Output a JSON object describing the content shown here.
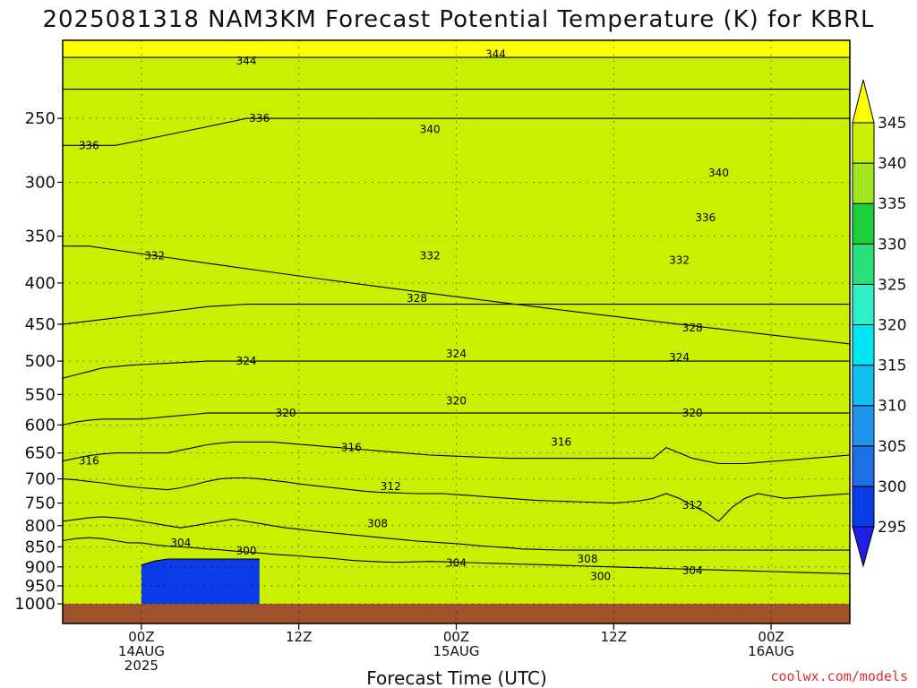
{
  "chart_data": {
    "type": "heatmap",
    "title": "2025081318 NAM3KM Forecast Potential Temperature (K) for KBRL",
    "xlabel": "Forecast Time (UTC)",
    "ylabel": "",
    "x_ticks": [
      {
        "hour": 6,
        "lines": [
          "00Z",
          "14AUG",
          "2025"
        ]
      },
      {
        "hour": 18,
        "lines": [
          "12Z"
        ]
      },
      {
        "hour": 30,
        "lines": [
          "00Z",
          "15AUG"
        ]
      },
      {
        "hour": 42,
        "lines": [
          "12Z"
        ]
      },
      {
        "hour": 54,
        "lines": [
          "00Z",
          "16AUG"
        ]
      }
    ],
    "xlim": [
      0,
      60
    ],
    "y_ticks": [
      250,
      300,
      350,
      400,
      450,
      500,
      550,
      600,
      650,
      700,
      750,
      800,
      850,
      900,
      950,
      1000
    ],
    "ylim_hpa": [
      1000,
      200
    ],
    "y_scale": "log-pressure",
    "grid": true,
    "colorbar": {
      "levels": [
        295,
        300,
        305,
        310,
        315,
        320,
        325,
        330,
        335,
        340,
        345
      ],
      "colors": [
        "#1e1ee6",
        "#0a3ce8",
        "#1e6ee6",
        "#1e96eb",
        "#10beef",
        "#00e6f0",
        "#2ef0c8",
        "#28e07a",
        "#1ecf3c",
        "#a2e61e",
        "#c8f000",
        "#ffff00"
      ]
    },
    "contour_interval": 4,
    "series": [
      {
        "theta": 300,
        "values": [
          null,
          null,
          null,
          null,
          null,
          null,
          895,
          885,
          880,
          880,
          880,
          880,
          880,
          880,
          880,
          880,
          null,
          null,
          null,
          null,
          null,
          null,
          null,
          null,
          null,
          null,
          null,
          null,
          null,
          null,
          null,
          null,
          null,
          null,
          null,
          null,
          null,
          null,
          null,
          null,
          null,
          null,
          null,
          null,
          null,
          null,
          null,
          null,
          null,
          null,
          null,
          null,
          null,
          null,
          null,
          null,
          null,
          null,
          null,
          null,
          null
        ]
      },
      {
        "theta": 304,
        "values": [
          835,
          830,
          828,
          830,
          835,
          840,
          840,
          845,
          848,
          850,
          852,
          855,
          857,
          860,
          862,
          865,
          868,
          870,
          872,
          875,
          877,
          880,
          883,
          885,
          887,
          888,
          888,
          887,
          886,
          887,
          888,
          889,
          890,
          891,
          892,
          893,
          894,
          895,
          896,
          897,
          898,
          899,
          900,
          901,
          902,
          903,
          904,
          905,
          906,
          907,
          908,
          909,
          910,
          911,
          912,
          913,
          914,
          915,
          916,
          917,
          918
        ]
      },
      {
        "theta": 308,
        "values": [
          790,
          786,
          782,
          780,
          782,
          785,
          790,
          795,
          800,
          805,
          800,
          795,
          790,
          785,
          790,
          795,
          800,
          805,
          808,
          812,
          815,
          818,
          821,
          824,
          827,
          830,
          833,
          836,
          838,
          840,
          842,
          845,
          848,
          850,
          852,
          855,
          856,
          857,
          858,
          858,
          858,
          858,
          858,
          858,
          858,
          858,
          858,
          858,
          858,
          858,
          858,
          858,
          858,
          858,
          858,
          858,
          858,
          858,
          858,
          858,
          858
        ]
      },
      {
        "theta": 312,
        "values": [
          700,
          702,
          705,
          708,
          712,
          715,
          718,
          720,
          722,
          718,
          712,
          705,
          700,
          698,
          698,
          700,
          703,
          706,
          710,
          713,
          716,
          719,
          722,
          725,
          727,
          728,
          729,
          730,
          730,
          730,
          732,
          734,
          736,
          738,
          740,
          742,
          744,
          745,
          746,
          747,
          748,
          749,
          750,
          748,
          745,
          740,
          730,
          740,
          755,
          770,
          790,
          760,
          740,
          730,
          735,
          740,
          738,
          736,
          734,
          732,
          730
        ]
      },
      {
        "theta": 316,
        "values": [
          665,
          660,
          655,
          652,
          650,
          650,
          650,
          650,
          650,
          645,
          640,
          635,
          632,
          630,
          630,
          630,
          630,
          632,
          634,
          636,
          638,
          640,
          642,
          644,
          646,
          648,
          650,
          652,
          654,
          655,
          656,
          657,
          658,
          659,
          660,
          660,
          660,
          660,
          660,
          660,
          660,
          660,
          660,
          660,
          660,
          660,
          640,
          650,
          660,
          665,
          670,
          670,
          670,
          668,
          666,
          664,
          662,
          660,
          658,
          656,
          654
        ]
      },
      {
        "theta": 320,
        "values": [
          600,
          595,
          592,
          590,
          590,
          590,
          590,
          588,
          586,
          584,
          582,
          580,
          580,
          580,
          580,
          580,
          580,
          580,
          580,
          580,
          580,
          580,
          580,
          580,
          580,
          580,
          580,
          580,
          580,
          580,
          580,
          580,
          580,
          580,
          580,
          580,
          580,
          580,
          580,
          580,
          580,
          580,
          580,
          580,
          580,
          580,
          580,
          580,
          580,
          580,
          580,
          580,
          580,
          580,
          580,
          580,
          580,
          580,
          580,
          580,
          580
        ]
      },
      {
        "theta": 324,
        "values": [
          525,
          520,
          515,
          510,
          508,
          506,
          505,
          504,
          503,
          502,
          501,
          500,
          500,
          500,
          500,
          500,
          500,
          500,
          500,
          500,
          500,
          500,
          500,
          500,
          500,
          500,
          500,
          500,
          500,
          500,
          500,
          500,
          500,
          500,
          500,
          500,
          500,
          500,
          500,
          500,
          500,
          500,
          500,
          500,
          500,
          500,
          500,
          500,
          500,
          500,
          500,
          500,
          500,
          500,
          500,
          500,
          500,
          500,
          500,
          500,
          500
        ]
      },
      {
        "theta": 328,
        "values": [
          450,
          448,
          446,
          444,
          442,
          440,
          438,
          436,
          434,
          432,
          430,
          428,
          427,
          426,
          425,
          425,
          425,
          425,
          425,
          425,
          425,
          425,
          425,
          425,
          425,
          425,
          425,
          425,
          425,
          425,
          425,
          425,
          425,
          425,
          425,
          425,
          425,
          425,
          425,
          425,
          425,
          425,
          425,
          425,
          425,
          425,
          425,
          425,
          425,
          425,
          425,
          425,
          425,
          425,
          425,
          425,
          425,
          425,
          425,
          425,
          425
        ]
      },
      {
        "theta": 332,
        "values": [
          360,
          360,
          360,
          362,
          364,
          366,
          368,
          370,
          372,
          374,
          376,
          378,
          380,
          382,
          384,
          386,
          388,
          390,
          392,
          394,
          396,
          398,
          400,
          402,
          404,
          406,
          408,
          410,
          412,
          414,
          416,
          418,
          420,
          422,
          424,
          426,
          428,
          430,
          432,
          434,
          436,
          438,
          440,
          442,
          444,
          446,
          448,
          450,
          452,
          454,
          456,
          458,
          460,
          462,
          464,
          466,
          468,
          470,
          472,
          474,
          476
        ]
      },
      {
        "theta": 336,
        "values": [
          270,
          270,
          270,
          270,
          270,
          268,
          266,
          264,
          262,
          260,
          258,
          256,
          254,
          252,
          250,
          250,
          250,
          250,
          250,
          250,
          250,
          250,
          250,
          250,
          250,
          250,
          250,
          250,
          250,
          250,
          250,
          250,
          250,
          250,
          250,
          250,
          250,
          250,
          250,
          250,
          250,
          250,
          250,
          250,
          250,
          250,
          250,
          250,
          250,
          250,
          250,
          250,
          250,
          250,
          250,
          250,
          250,
          250,
          250,
          250,
          250
        ]
      },
      {
        "theta": 340,
        "values": [
          230,
          230,
          230,
          230,
          230,
          230,
          230,
          230,
          230,
          230,
          230,
          230,
          230,
          230,
          230,
          230,
          230,
          230,
          230,
          230,
          230,
          230,
          230,
          230,
          230,
          230,
          230,
          230,
          230,
          230,
          230,
          230,
          230,
          230,
          230,
          230,
          230,
          230,
          230,
          230,
          230,
          230,
          230,
          230,
          230,
          230,
          230,
          230,
          230,
          230,
          230,
          230,
          230,
          230,
          230,
          230,
          230,
          230,
          230,
          230,
          230
        ]
      },
      {
        "theta": 344,
        "values": [
          210,
          210,
          210,
          210,
          210,
          210,
          210,
          210,
          210,
          210,
          210,
          210,
          210,
          210,
          210,
          210,
          210,
          210,
          210,
          210,
          210,
          210,
          210,
          210,
          210,
          210,
          210,
          210,
          210,
          210,
          210,
          210,
          210,
          210,
          210,
          210,
          210,
          210,
          210,
          210,
          210,
          210,
          210,
          210,
          210,
          210,
          210,
          210,
          210,
          210,
          210,
          210,
          210,
          210,
          210,
          210,
          210,
          210,
          210,
          210,
          210
        ]
      }
    ],
    "contour_labels": [
      {
        "text": "344",
        "hour": 14,
        "hpa": 212
      },
      {
        "text": "344",
        "hour": 33,
        "hpa": 208
      },
      {
        "text": "336",
        "hour": 15,
        "hpa": 250
      },
      {
        "text": "340",
        "hour": 28,
        "hpa": 258
      },
      {
        "text": "336",
        "hour": 2,
        "hpa": 270
      },
      {
        "text": "340",
        "hour": 50,
        "hpa": 292
      },
      {
        "text": "336",
        "hour": 49,
        "hpa": 332
      },
      {
        "text": "332",
        "hour": 7,
        "hpa": 370
      },
      {
        "text": "332",
        "hour": 28,
        "hpa": 370
      },
      {
        "text": "332",
        "hour": 47,
        "hpa": 375
      },
      {
        "text": "328",
        "hour": 27,
        "hpa": 418
      },
      {
        "text": "328",
        "hour": 48,
        "hpa": 455
      },
      {
        "text": "324",
        "hour": 14,
        "hpa": 500
      },
      {
        "text": "324",
        "hour": 30,
        "hpa": 490
      },
      {
        "text": "324",
        "hour": 47,
        "hpa": 495
      },
      {
        "text": "320",
        "hour": 30,
        "hpa": 560
      },
      {
        "text": "320",
        "hour": 17,
        "hpa": 580
      },
      {
        "text": "320",
        "hour": 48,
        "hpa": 580
      },
      {
        "text": "316",
        "hour": 2,
        "hpa": 665
      },
      {
        "text": "316",
        "hour": 22,
        "hpa": 640
      },
      {
        "text": "316",
        "hour": 38,
        "hpa": 630
      },
      {
        "text": "312",
        "hour": 25,
        "hpa": 715
      },
      {
        "text": "312",
        "hour": 48,
        "hpa": 755
      },
      {
        "text": "308",
        "hour": 24,
        "hpa": 795
      },
      {
        "text": "308",
        "hour": 40,
        "hpa": 880
      },
      {
        "text": "304",
        "hour": 9,
        "hpa": 840
      },
      {
        "text": "304",
        "hour": 30,
        "hpa": 890
      },
      {
        "text": "304",
        "hour": 48,
        "hpa": 910
      },
      {
        "text": "300",
        "hour": 14,
        "hpa": 860
      },
      {
        "text": "300",
        "hour": 41,
        "hpa": 925
      }
    ],
    "surface": {
      "hpa": 985,
      "color": "#a0522d"
    }
  },
  "credit": "coolwx.com/models"
}
